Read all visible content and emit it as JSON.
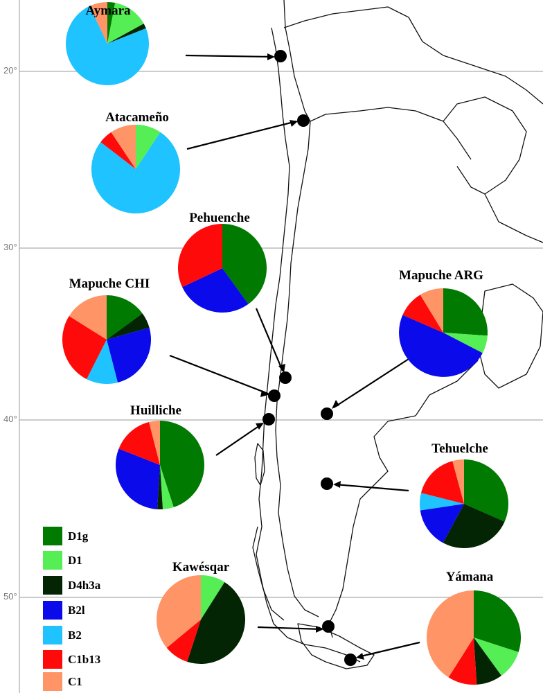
{
  "haplogroups": [
    {
      "id": "D1g",
      "label": "D1g",
      "color": "#007A00"
    },
    {
      "id": "D1",
      "label": "D1",
      "color": "#55EE55"
    },
    {
      "id": "D4h3a",
      "label": "D4h3a",
      "color": "#032503"
    },
    {
      "id": "B2l",
      "label": "B2l",
      "color": "#0A0AEB"
    },
    {
      "id": "B2",
      "label": "B2",
      "color": "#1EC3FF"
    },
    {
      "id": "C1b13",
      "label": "C1b13",
      "color": "#FF0A0A"
    },
    {
      "id": "C1",
      "label": "C1",
      "color": "#FF9466"
    }
  ],
  "latitudes": [
    {
      "label": "20°"
    },
    {
      "label": "30°"
    },
    {
      "label": "40°"
    },
    {
      "label": "50°"
    }
  ],
  "populations": [
    {
      "name": "Aymara",
      "values": {
        "D1g": 0.03,
        "D1": 0.14,
        "D4h3a": 0.02,
        "B2l": 0.0,
        "B2": 0.74,
        "C1b13": 0.0,
        "C1": 0.07
      }
    },
    {
      "name": "Atacameño",
      "values": {
        "D1g": 0.0,
        "D1": 0.09,
        "D4h3a": 0.0,
        "B2l": 0.0,
        "B2": 0.73,
        "C1b13": 0.05,
        "C1": 0.09
      }
    },
    {
      "name": "Pehuenche",
      "values": {
        "D1g": 0.4,
        "D1": 0.0,
        "D4h3a": 0.0,
        "B2l": 0.28,
        "B2": 0.0,
        "C1b13": 0.32,
        "C1": 0.0
      }
    },
    {
      "name": "Mapuche CHI",
      "values": {
        "D1g": 0.13,
        "D1": 0.0,
        "D4h3a": 0.05,
        "B2l": 0.22,
        "B2": 0.1,
        "C1b13": 0.23,
        "C1": 0.14
      }
    },
    {
      "name": "Mapuche ARG",
      "values": {
        "D1g": 0.24,
        "D1": 0.06,
        "D4h3a": 0.0,
        "B2l": 0.45,
        "B2": 0.0,
        "C1b13": 0.09,
        "C1": 0.08
      }
    },
    {
      "name": "Huilliche",
      "values": {
        "D1g": 0.45,
        "D1": 0.04,
        "D4h3a": 0.02,
        "B2l": 0.3,
        "B2": 0.0,
        "C1b13": 0.15,
        "C1": 0.04
      }
    },
    {
      "name": "Tehuelche",
      "values": {
        "D1g": 0.3,
        "D1": 0.0,
        "D4h3a": 0.25,
        "B2l": 0.14,
        "B2": 0.06,
        "C1b13": 0.16,
        "C1": 0.04
      }
    },
    {
      "name": "Kawésqar",
      "values": {
        "D1g": 0.0,
        "D1": 0.09,
        "D4h3a": 0.46,
        "B2l": 0.0,
        "B2": 0.0,
        "C1b13": 0.09,
        "C1": 0.36
      }
    },
    {
      "name": "Yámana",
      "values": {
        "D1g": 0.3,
        "D1": 0.1,
        "D4h3a": 0.09,
        "B2l": 0.0,
        "B2": 0.0,
        "C1b13": 0.1,
        "C1": 0.41
      }
    }
  ]
}
